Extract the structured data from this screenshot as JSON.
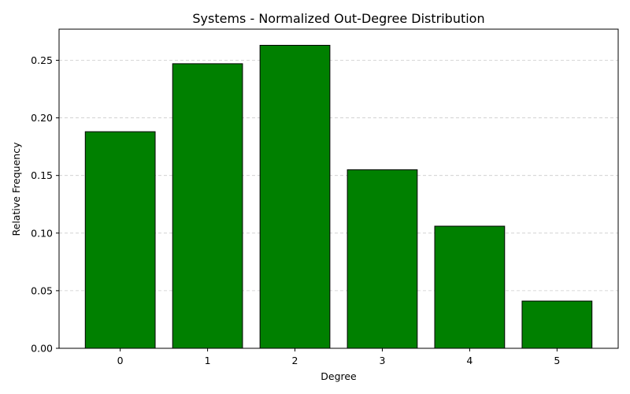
{
  "chart_data": {
    "type": "bar",
    "title": "Systems - Normalized Out-Degree Distribution",
    "xlabel": "Degree",
    "ylabel": "Relative Frequency",
    "categories": [
      "0",
      "1",
      "2",
      "3",
      "4",
      "5"
    ],
    "values": [
      0.188,
      0.247,
      0.263,
      0.155,
      0.106,
      0.041
    ],
    "ylim": [
      0,
      0.277
    ],
    "yticks": [
      "0.00",
      "0.05",
      "0.10",
      "0.15",
      "0.20",
      "0.25"
    ],
    "grid": "y-dashed",
    "colors": {
      "bar": "#008000",
      "edge": "#000000",
      "grid": "#cccccc"
    }
  }
}
